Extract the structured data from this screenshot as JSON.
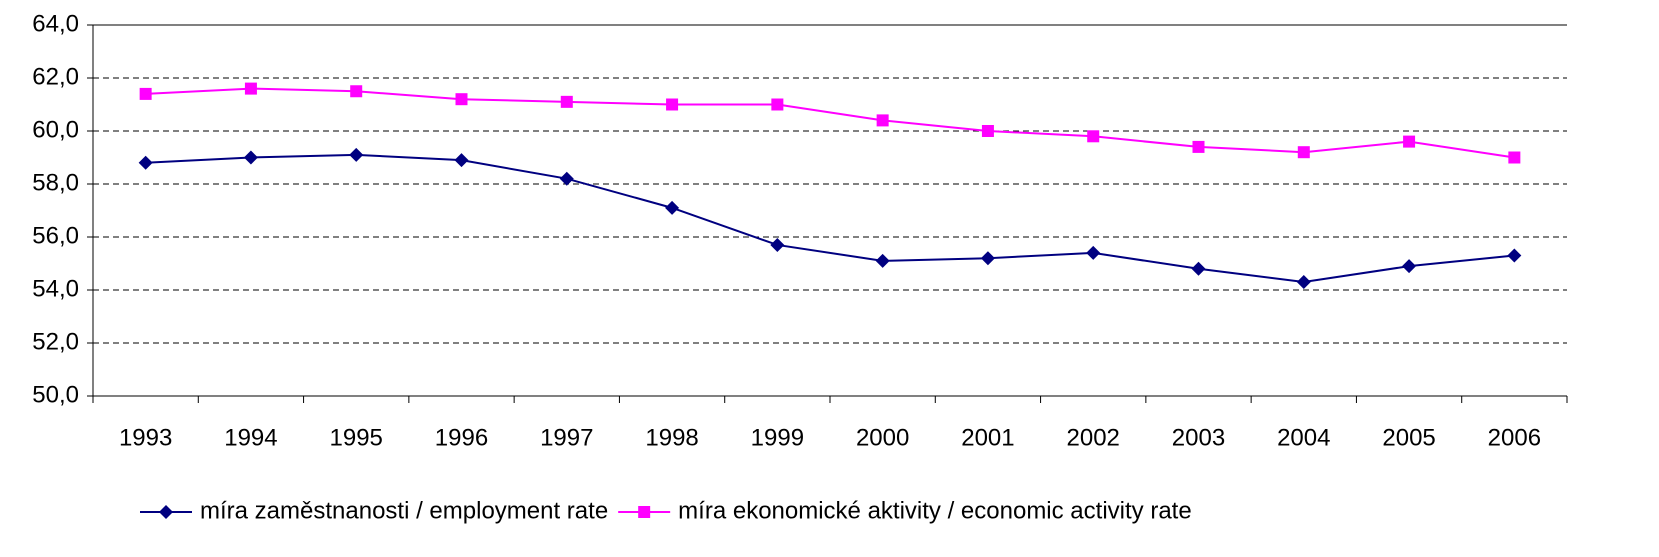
{
  "chart_data": {
    "type": "line",
    "categories": [
      "1993",
      "1994",
      "1995",
      "1996",
      "1997",
      "1998",
      "1999",
      "2000",
      "2001",
      "2002",
      "2003",
      "2004",
      "2005",
      "2006"
    ],
    "series": [
      {
        "name": "míra zaměstnanosti / employment rate",
        "color": "#000080",
        "marker": "diamond",
        "values": [
          58.8,
          59.0,
          59.1,
          58.9,
          58.2,
          57.1,
          55.7,
          55.1,
          55.2,
          55.4,
          54.8,
          54.3,
          54.9,
          55.3
        ]
      },
      {
        "name": "míra ekonomické aktivity / economic activity rate",
        "color": "#ff00ff",
        "marker": "square",
        "values": [
          61.4,
          61.6,
          61.5,
          61.2,
          61.1,
          61.0,
          61.0,
          60.4,
          60.0,
          59.8,
          59.4,
          59.2,
          59.6,
          59.0
        ]
      }
    ],
    "ylim": [
      50,
      64
    ],
    "yticks": [
      {
        "value": 50,
        "label": "50,0"
      },
      {
        "value": 52,
        "label": "52,0"
      },
      {
        "value": 54,
        "label": "54,0"
      },
      {
        "value": 56,
        "label": "56,0"
      },
      {
        "value": 58,
        "label": "58,0"
      },
      {
        "value": 60,
        "label": "60,0"
      },
      {
        "value": 62,
        "label": "62,0"
      },
      {
        "value": 64,
        "label": "64,0"
      }
    ],
    "grid": true,
    "legend": "bottom"
  }
}
